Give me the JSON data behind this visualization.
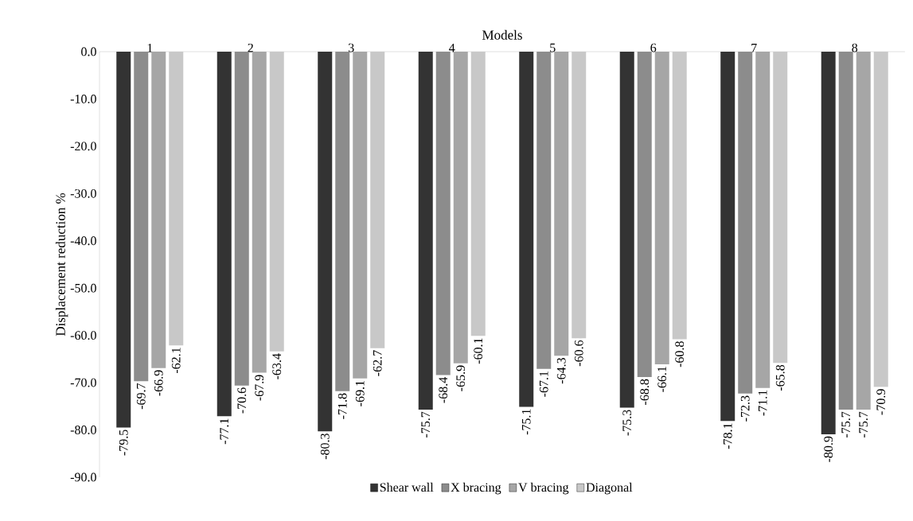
{
  "chart_data": {
    "type": "bar",
    "xlabel": "Models",
    "ylabel": "Displacement reduction %",
    "categories": [
      "1",
      "2",
      "3",
      "4",
      "5",
      "6",
      "7",
      "8"
    ],
    "series": [
      {
        "name": "Shear wall",
        "color": "#333333",
        "values": [
          -79.5,
          -77.1,
          -80.3,
          -75.7,
          -75.1,
          -75.3,
          -78.1,
          -80.9
        ]
      },
      {
        "name": "X bracing",
        "color": "#8c8c8c",
        "values": [
          -69.7,
          -70.6,
          -71.8,
          -68.4,
          -67.1,
          -68.8,
          -72.3,
          -75.7
        ]
      },
      {
        "name": "V bracing",
        "color": "#a6a6a6",
        "values": [
          -66.9,
          -67.9,
          -69.1,
          -65.9,
          -64.3,
          -66.1,
          -71.1,
          -75.7
        ]
      },
      {
        "name": "Diagonal",
        "color": "#c8c8c8",
        "values": [
          -62.1,
          -63.4,
          -62.7,
          -60.1,
          -60.6,
          -60.8,
          -65.8,
          -70.9
        ]
      }
    ],
    "ylim": [
      -90,
      0
    ],
    "yticks": [
      {
        "value": 0,
        "label": "0.0"
      },
      {
        "value": -10,
        "label": "-10.0"
      },
      {
        "value": -20,
        "label": "-20.0"
      },
      {
        "value": -30,
        "label": "-30.0"
      },
      {
        "value": -40,
        "label": "-40.0"
      },
      {
        "value": -50,
        "label": "-50.0"
      },
      {
        "value": -60,
        "label": "-60.0"
      },
      {
        "value": -70,
        "label": "-70.0"
      },
      {
        "value": -80,
        "label": "-80.0"
      },
      {
        "value": -90,
        "label": "-90.0"
      }
    ],
    "data_labels": true,
    "grid": false,
    "legend": "bottom"
  }
}
